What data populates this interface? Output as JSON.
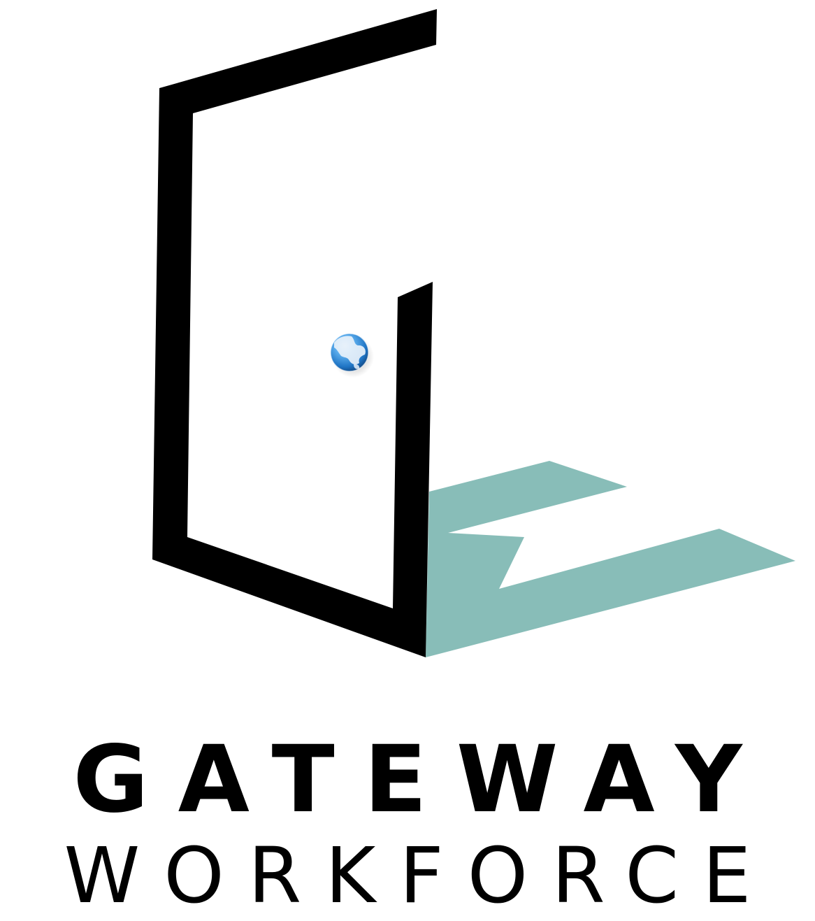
{
  "logo": {
    "line1": "GATEWAY",
    "line2": "WORKFORCE",
    "icon_name": "door-globe-logo-icon",
    "globe_icon": "globe-icon",
    "colors": {
      "door_frame": "#000000",
      "shadow": "#88BDB8",
      "globe_blue": "#2A86D6",
      "globe_land": "#E8F1FA",
      "text": "#000000"
    }
  }
}
